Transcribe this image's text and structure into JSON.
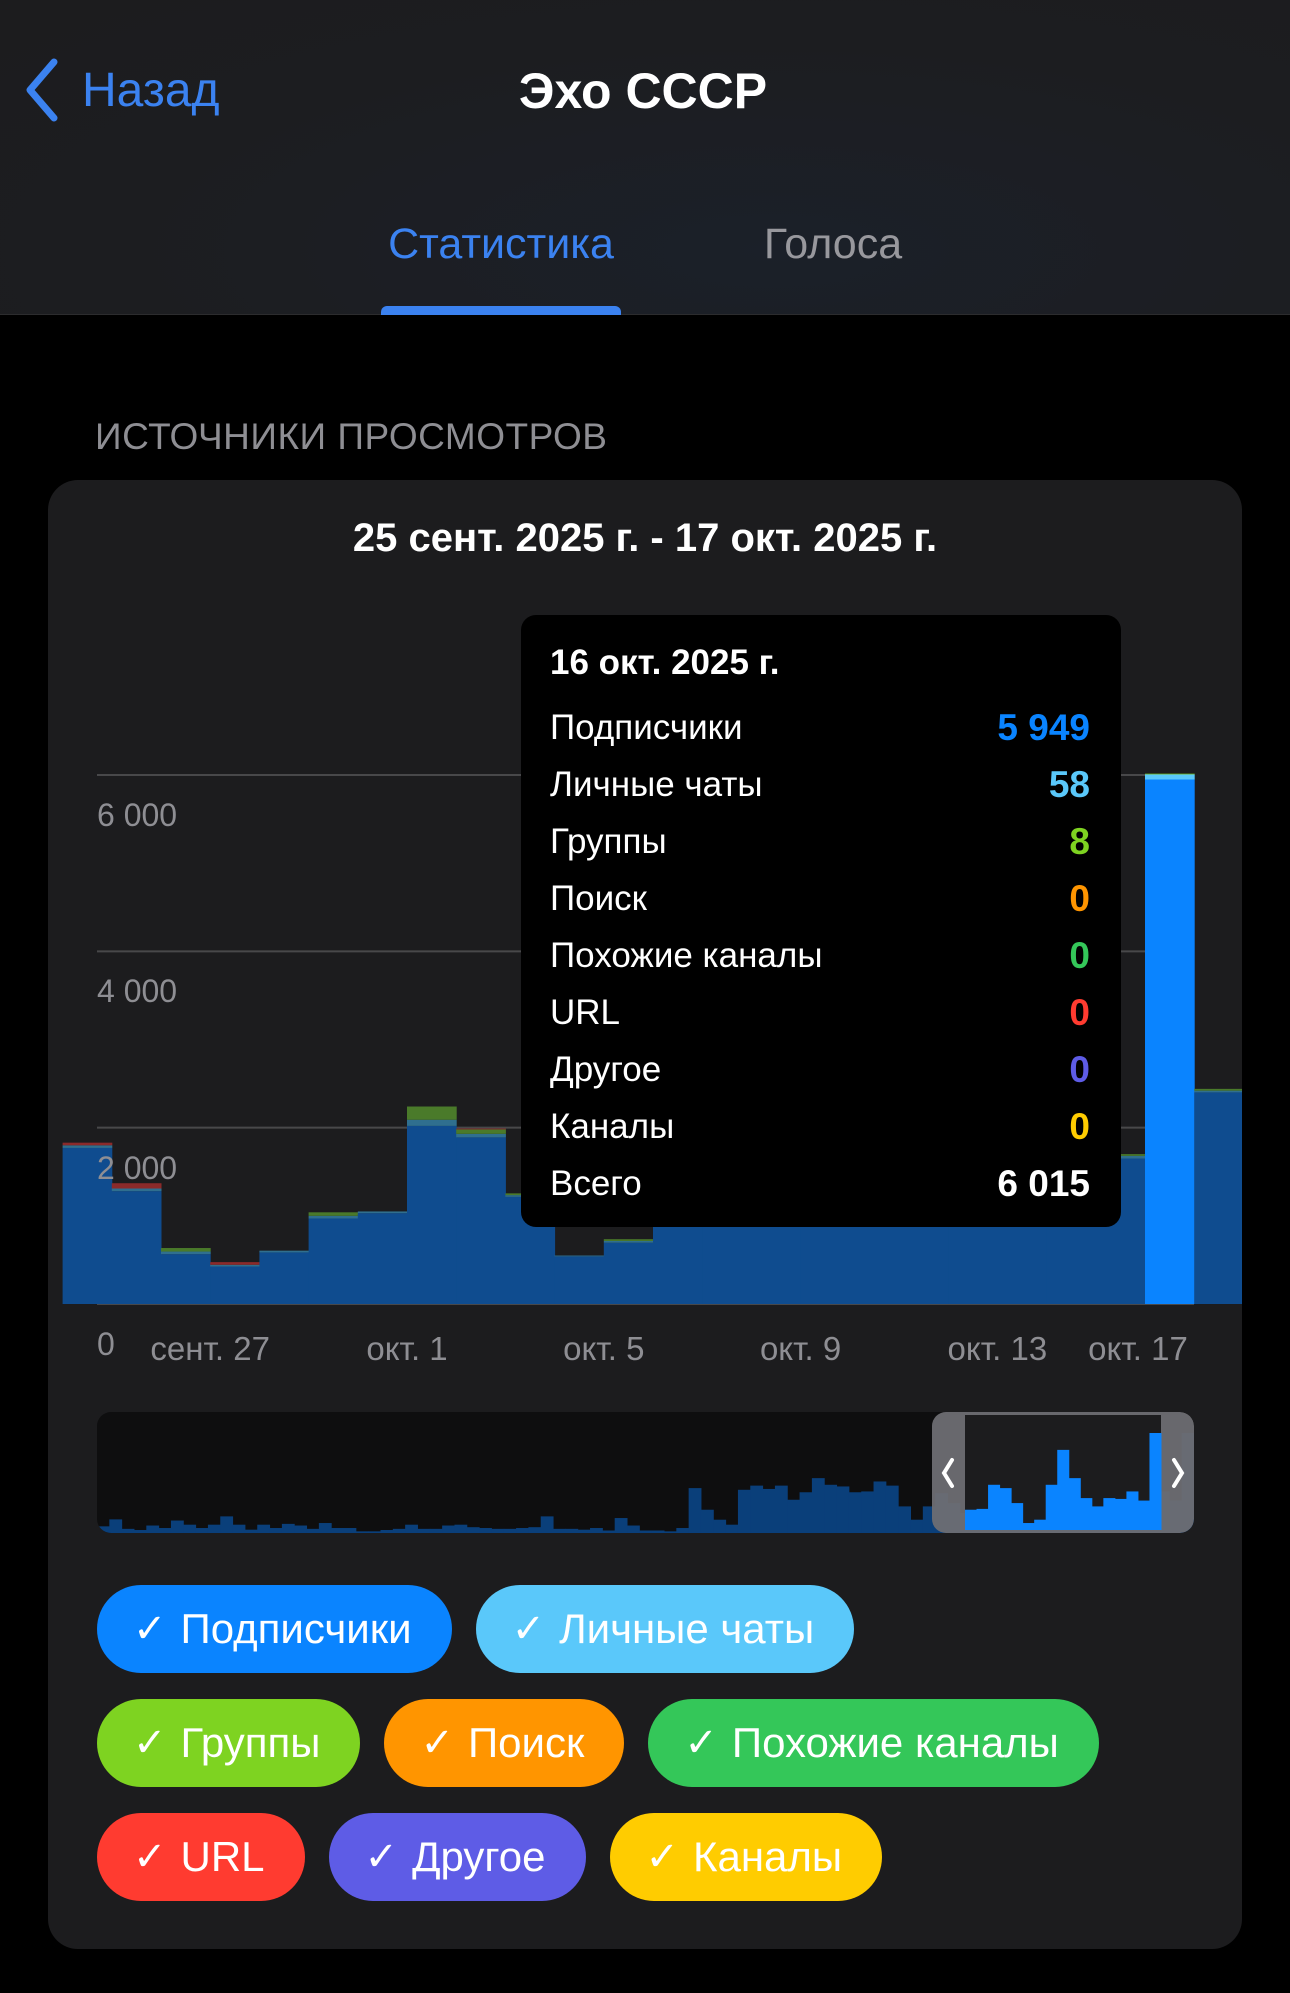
{
  "header": {
    "back_label": "Назад",
    "title": "Эхо СССР"
  },
  "tabs": [
    {
      "label": "Статистика",
      "active": true
    },
    {
      "label": "Голоса",
      "active": false
    }
  ],
  "section_title": "ИСТОЧНИКИ ПРОСМОТРОВ",
  "colors": {
    "accent": "#3b82f0",
    "card": "#1c1c1e"
  },
  "chart_data": {
    "type": "bar",
    "stacked": true,
    "title": "25 сент. 2025 г. - 17 окт. 2025 г.",
    "x": [
      "2025-09-24",
      "2025-09-25",
      "2025-09-26",
      "2025-09-27",
      "2025-09-28",
      "2025-09-29",
      "2025-09-30",
      "2025-10-01",
      "2025-10-02",
      "2025-10-03",
      "2025-10-04",
      "2025-10-05",
      "2025-10-06",
      "2025-10-07",
      "2025-10-08",
      "2025-10-09",
      "2025-10-10",
      "2025-10-11",
      "2025-10-12",
      "2025-10-13",
      "2025-10-14",
      "2025-10-15",
      "2025-10-16",
      "2025-10-17"
    ],
    "x_tick_labels": [
      {
        "index": 3,
        "label": "сент. 27"
      },
      {
        "index": 7,
        "label": "окт. 1"
      },
      {
        "index": 11,
        "label": "окт. 5"
      },
      {
        "index": 15,
        "label": "окт. 9"
      },
      {
        "index": 19,
        "label": "окт. 13"
      },
      {
        "index": 23,
        "label": "окт. 17"
      }
    ],
    "y_ticks": [
      {
        "value": 0,
        "label": "0"
      },
      {
        "value": 2000,
        "label": "2 000"
      },
      {
        "value": 4000,
        "label": "4 000"
      },
      {
        "value": 6000,
        "label": "6 000"
      }
    ],
    "ylim": [
      0,
      6000
    ],
    "grid": true,
    "highlighted_index": 22,
    "series": [
      {
        "name": "Подписчики",
        "color": "#0a84ff",
        "dim": "#0f4c8f",
        "values": [
          1770,
          1280,
          565,
          425,
          585,
          970,
          1030,
          2020,
          1890,
          1215,
          540,
          695,
          2100,
          4400,
          2930,
          1900,
          1350,
          1830,
          1790,
          2240,
          1750,
          1650,
          5949,
          2400
        ]
      },
      {
        "name": "Личные чаты",
        "color": "#5ac8fa",
        "dim": "#2f6f8f",
        "values": [
          30,
          30,
          30,
          20,
          20,
          30,
          20,
          70,
          40,
          20,
          10,
          20,
          40,
          60,
          40,
          40,
          30,
          30,
          30,
          30,
          30,
          30,
          58,
          20
        ]
      },
      {
        "name": "Группы",
        "color": "#7ed321",
        "dim": "#4a7a2a",
        "values": [
          0,
          0,
          40,
          0,
          0,
          40,
          0,
          150,
          50,
          20,
          0,
          20,
          60,
          40,
          30,
          60,
          20,
          40,
          30,
          30,
          20,
          20,
          8,
          20
        ]
      },
      {
        "name": "Поиск",
        "color": "#ff9500",
        "dim": "#8a5a1a",
        "values": [
          0,
          0,
          0,
          0,
          0,
          0,
          0,
          0,
          0,
          0,
          0,
          0,
          0,
          0,
          0,
          0,
          0,
          0,
          0,
          0,
          0,
          0,
          0,
          0
        ]
      },
      {
        "name": "Похожие каналы",
        "color": "#34c759",
        "dim": "#2a6a3a",
        "values": [
          0,
          0,
          0,
          0,
          0,
          0,
          0,
          0,
          0,
          0,
          0,
          0,
          0,
          0,
          0,
          0,
          0,
          0,
          0,
          0,
          0,
          0,
          0,
          0
        ]
      },
      {
        "name": "URL",
        "color": "#ff3b30",
        "dim": "#8b2a2a",
        "values": [
          30,
          60,
          0,
          30,
          0,
          0,
          0,
          0,
          10,
          0,
          0,
          0,
          0,
          0,
          0,
          0,
          0,
          0,
          0,
          0,
          0,
          0,
          0,
          0
        ]
      },
      {
        "name": "Другое",
        "color": "#5e5ce6",
        "dim": "#3a3a8a",
        "values": [
          0,
          0,
          0,
          0,
          0,
          0,
          0,
          0,
          0,
          0,
          0,
          0,
          0,
          0,
          0,
          0,
          0,
          0,
          0,
          0,
          0,
          0,
          0,
          0
        ]
      },
      {
        "name": "Каналы",
        "color": "#ffcc00",
        "dim": "#8a7a1a",
        "values": [
          0,
          0,
          0,
          0,
          0,
          0,
          0,
          0,
          0,
          0,
          0,
          0,
          0,
          0,
          0,
          0,
          0,
          0,
          0,
          0,
          0,
          0,
          0,
          0
        ]
      }
    ],
    "overview": [
      400,
      820,
      250,
      180,
      450,
      300,
      750,
      500,
      300,
      500,
      1000,
      500,
      200,
      500,
      300,
      550,
      450,
      250,
      600,
      300,
      300,
      100,
      100,
      180,
      250,
      500,
      250,
      250,
      450,
      500,
      350,
      300,
      250,
      250,
      300,
      350,
      1000,
      250,
      250,
      200,
      300,
      150,
      900,
      450,
      150,
      150,
      100,
      300,
      2700,
      1400,
      800,
      500,
      2600,
      2850,
      2650,
      2850,
      2000,
      2450,
      3300,
      2900,
      2800,
      2450,
      2500,
      3100,
      2850,
      1600,
      800,
      1600,
      2400,
      1800,
      1200,
      640,
      1400,
      1450,
      2900,
      2700,
      1800,
      600,
      800,
      2900,
      5000,
      3300,
      2100,
      1600,
      2100,
      2050,
      2500,
      1950,
      6015
    ]
  },
  "tooltip": {
    "date": "16 окт. 2025 г.",
    "rows": [
      {
        "label": "Подписчики",
        "value": "5 949",
        "color": "#0a84ff"
      },
      {
        "label": "Личные чаты",
        "value": "58",
        "color": "#5ac8fa"
      },
      {
        "label": "Группы",
        "value": "8",
        "color": "#7ed321"
      },
      {
        "label": "Поиск",
        "value": "0",
        "color": "#ff9500"
      },
      {
        "label": "Похожие каналы",
        "value": "0",
        "color": "#34c759"
      },
      {
        "label": "URL",
        "value": "0",
        "color": "#ff3b30"
      },
      {
        "label": "Другое",
        "value": "0",
        "color": "#5e5ce6"
      },
      {
        "label": "Каналы",
        "value": "0",
        "color": "#ffcc00"
      },
      {
        "label": "Всего",
        "value": "6 015",
        "color": "#ffffff"
      }
    ]
  },
  "legend": [
    {
      "label": "Подписчики",
      "color": "#0a84ff",
      "checked": true,
      "check": "✓"
    },
    {
      "label": "Личные чаты",
      "color": "#5ac8fa",
      "checked": true,
      "check": "✓"
    },
    {
      "label": "Группы",
      "color": "#7ed321",
      "checked": true,
      "check": "✓"
    },
    {
      "label": "Поиск",
      "color": "#ff9500",
      "checked": true,
      "check": "✓"
    },
    {
      "label": "Похожие каналы",
      "color": "#34c759",
      "checked": true,
      "check": "✓"
    },
    {
      "label": "URL",
      "color": "#ff3b30",
      "checked": true,
      "check": "✓"
    },
    {
      "label": "Другое",
      "color": "#5e5ce6",
      "checked": true,
      "check": "✓"
    },
    {
      "label": "Каналы",
      "color": "#ffcc00",
      "checked": true,
      "check": "✓"
    }
  ]
}
